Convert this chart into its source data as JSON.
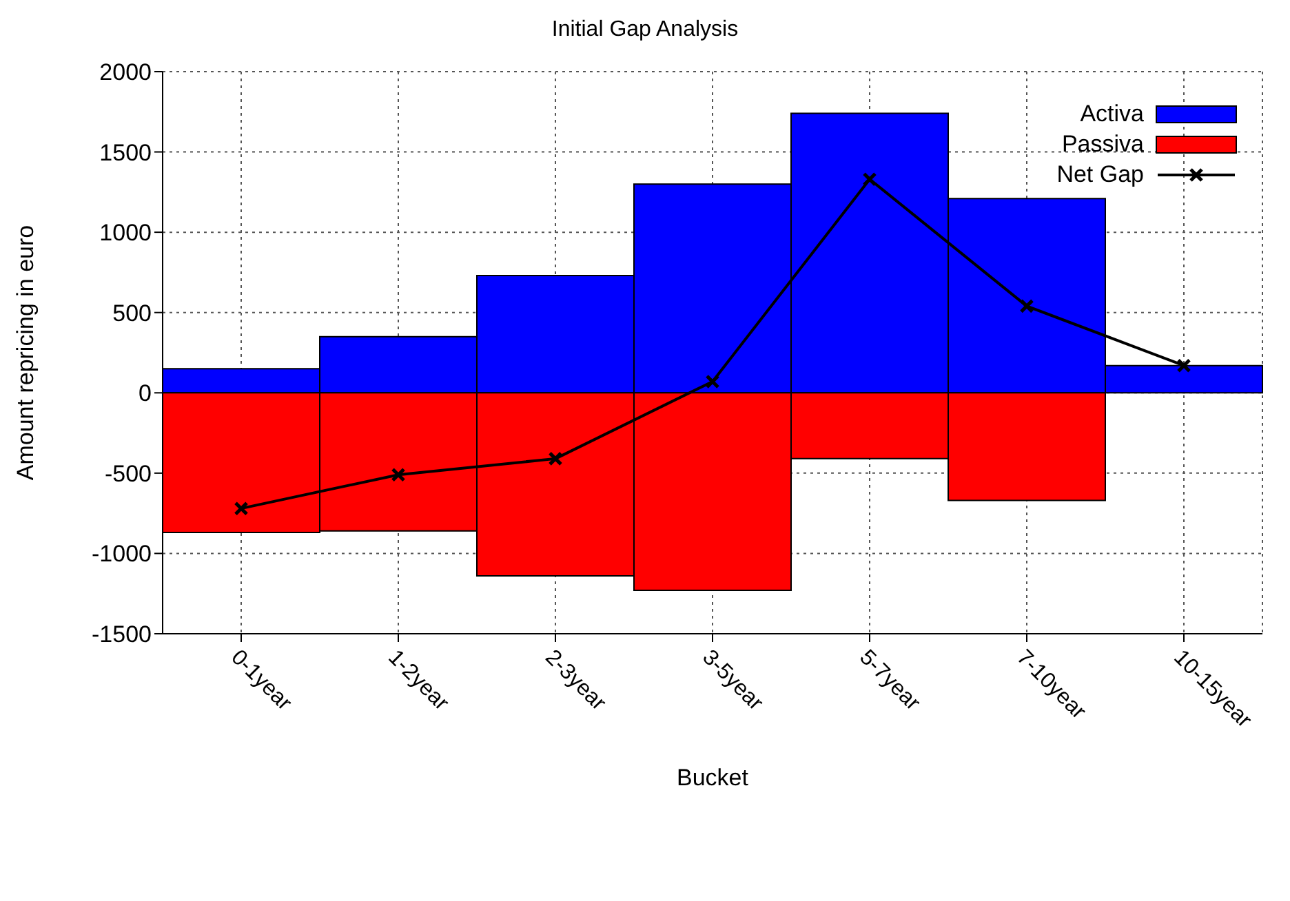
{
  "chart_data": {
    "type": "bar",
    "title": "Initial Gap Analysis",
    "xlabel": "Bucket",
    "ylabel": "Amount repricing in euro",
    "categories": [
      "0-1year",
      "1-2year",
      "2-3year",
      "3-5year",
      "5-7year",
      "7-10year",
      "10-15year"
    ],
    "stacked": true,
    "series": [
      {
        "name": "Activa",
        "color": "#0000ff",
        "values": [
          150,
          350,
          730,
          1300,
          1740,
          1210,
          170
        ]
      },
      {
        "name": "Passiva",
        "color": "#ff0000",
        "values": [
          -870,
          -860,
          -1140,
          -1230,
          -410,
          -670,
          0
        ]
      },
      {
        "name": "Net Gap",
        "type": "line",
        "color": "#000000",
        "values": [
          -720,
          -510,
          -410,
          70,
          1330,
          540,
          170
        ]
      }
    ],
    "ylim": [
      -1500,
      2000
    ],
    "yticks": [
      -1500,
      -1000,
      -500,
      0,
      500,
      1000,
      1500,
      2000
    ],
    "grid": true,
    "legend": "top right",
    "marker": "cross",
    "line_style": "solid"
  }
}
